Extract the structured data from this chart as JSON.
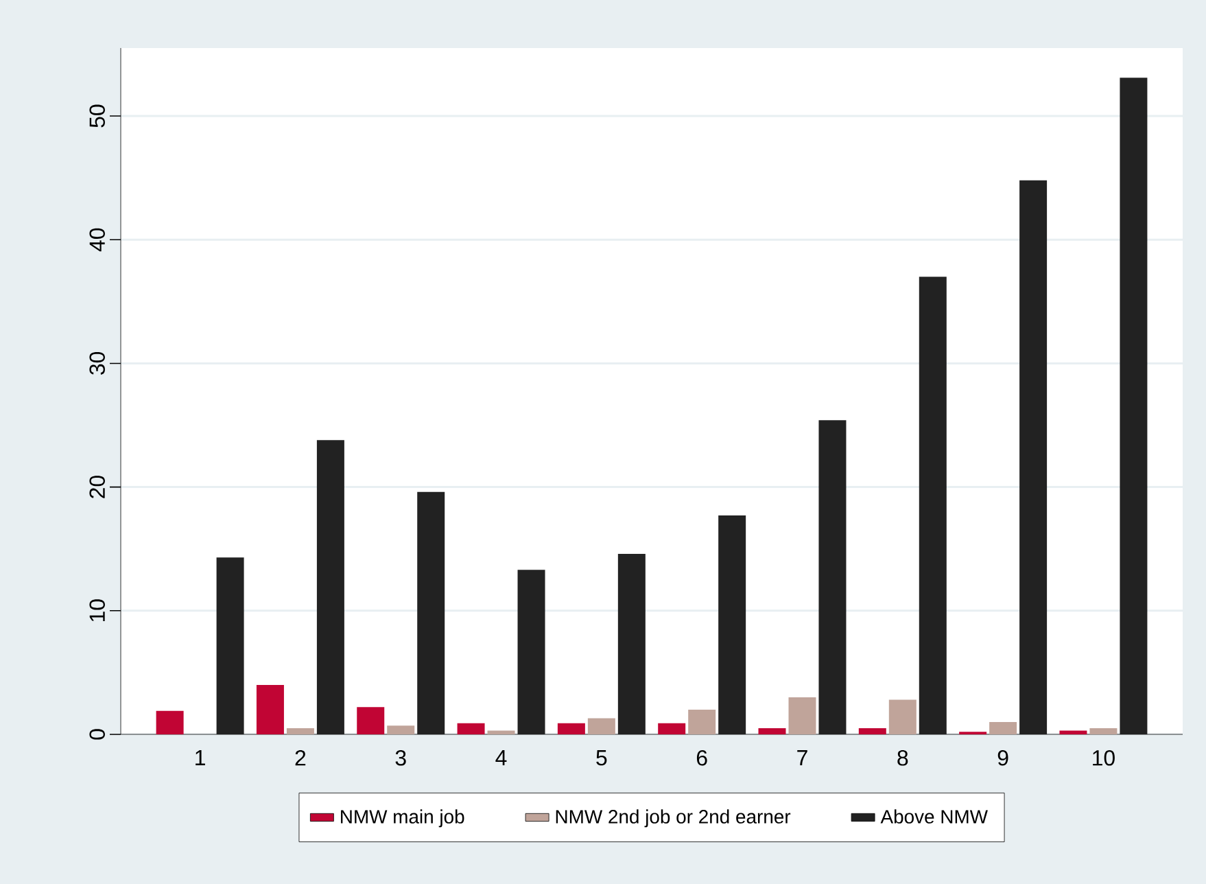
{
  "chart_data": {
    "type": "bar",
    "categories": [
      "1",
      "2",
      "3",
      "4",
      "5",
      "6",
      "7",
      "8",
      "9",
      "10"
    ],
    "series": [
      {
        "name": "NMW main job",
        "color": "#c10534",
        "values": [
          1.9,
          4.0,
          2.2,
          0.9,
          0.9,
          0.9,
          0.5,
          0.5,
          0.2,
          0.3
        ]
      },
      {
        "name": "NMW 2nd job or 2nd earner",
        "color": "#c0a49a",
        "values": [
          0,
          0.5,
          0.7,
          0.3,
          1.3,
          2.0,
          3.0,
          2.8,
          1.0,
          0.5
        ]
      },
      {
        "name": "Above NMW",
        "color": "#222222",
        "values": [
          14.3,
          23.8,
          19.6,
          13.3,
          14.6,
          17.7,
          25.4,
          37.0,
          44.8,
          53.1
        ]
      }
    ],
    "ylim": [
      0,
      55.5
    ],
    "yticks": [
      0,
      10,
      20,
      30,
      40,
      50
    ],
    "grid": "y",
    "legend": "bottom"
  }
}
